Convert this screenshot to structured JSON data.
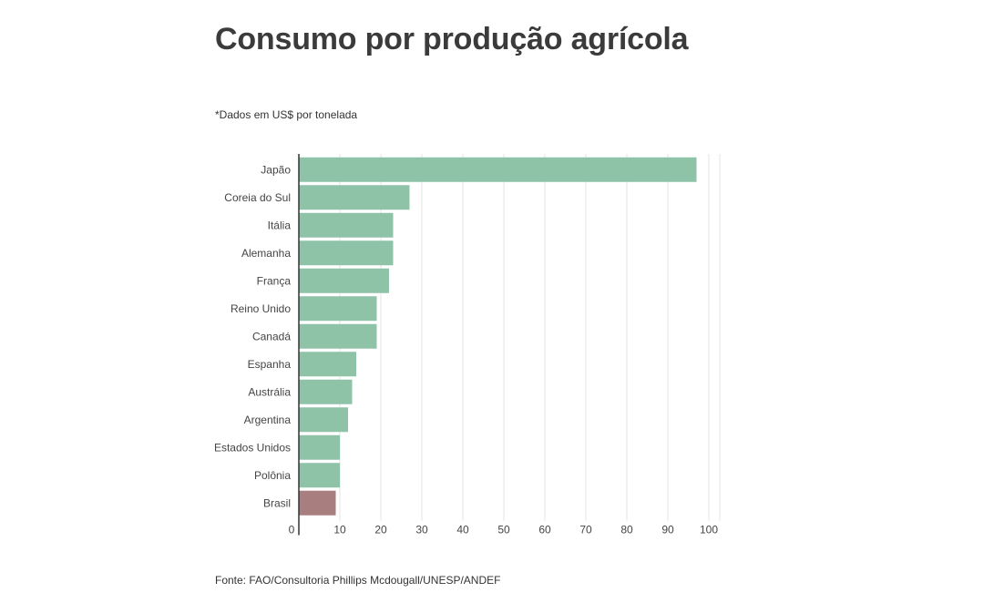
{
  "title": "Consumo por produção agrícola",
  "subtitle": "*Dados em US$ por tonelada",
  "source": "Fonte: FAO/Consultoria Phillips Mcdougall/UNESP/ANDEF",
  "colors": {
    "bar": "#8fc3a8",
    "highlight": "#a87e7e",
    "grid": "#e3e3e3",
    "axis": "#333333"
  },
  "chart_data": {
    "type": "bar",
    "orientation": "horizontal",
    "title": "Consumo por produção agrícola",
    "subtitle": "*Dados em US$ por tonelada",
    "categories": [
      "Japão",
      "Coreia do Sul",
      "Itália",
      "Alemanha",
      "França",
      "Reino Unido",
      "Canadá",
      "Espanha",
      "Austrália",
      "Argentina",
      "Estados Unidos",
      "Polônia",
      "Brasil"
    ],
    "values": [
      97,
      27,
      23,
      23,
      22,
      19,
      19,
      14,
      13,
      12,
      10,
      10,
      9
    ],
    "highlight_category": "Brasil",
    "xlim": [
      0,
      100
    ],
    "xticks": [
      0,
      10,
      20,
      30,
      40,
      50,
      60,
      70,
      80,
      90,
      100
    ],
    "grid": true
  }
}
